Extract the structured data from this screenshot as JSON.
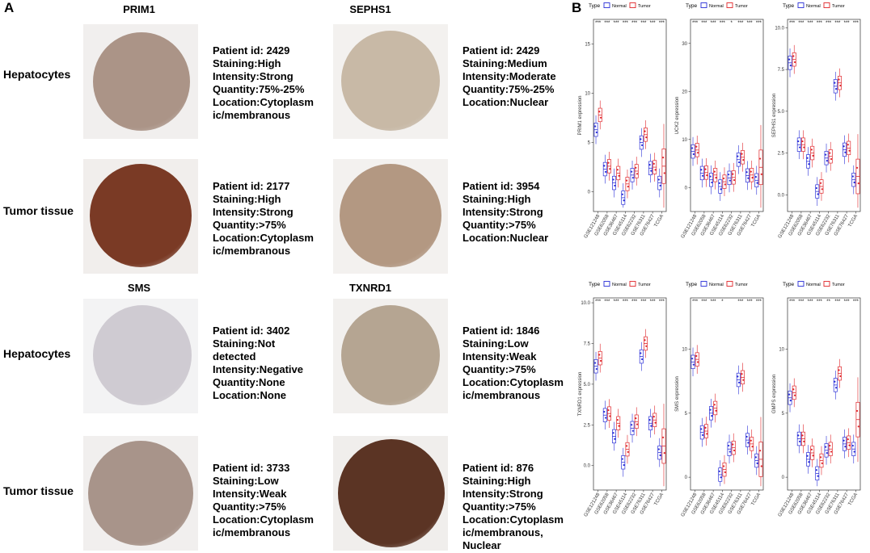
{
  "panel_a": {
    "letter": "A",
    "genes_row1": [
      "PRIM1",
      "SEPHS1"
    ],
    "genes_row2": [
      "SMS",
      "TXNRD1"
    ],
    "row_labels": [
      "Hepatocytes",
      "Tumor tissue",
      "Hepatocytes",
      "Tumor tissue"
    ],
    "cells": [
      {
        "lines": [
          "Patient id: 2429",
          "Staining:High",
          "Intensity:Strong",
          "Quantity:75%-25%",
          "Location:Cytoplasm",
          "ic/membranous"
        ],
        "stain": "#ab9487",
        "bg": "#f1efee"
      },
      {
        "lines": [
          "Patient id: 2429",
          "Staining:Medium",
          "Intensity:Moderate",
          "Quantity:75%-25%",
          "Location:Nuclear"
        ],
        "stain": "#c8b9a6",
        "bg": "#f3f1ef"
      },
      {
        "lines": [
          "Patient id: 2177",
          "Staining:High",
          "Intensity:Strong",
          "Quantity:>75%",
          "Location:Cytoplasm",
          "ic/membranous"
        ],
        "stain": "#7a3a25",
        "bg": "#f1eeec"
      },
      {
        "lines": [
          "Patient id: 3954",
          "Staining:High",
          "Intensity:Strong",
          "Quantity:>75%",
          "Location:Nuclear"
        ],
        "stain": "#b39882",
        "bg": "#f3f1ef"
      },
      {
        "lines": [
          "Patient id: 3402",
          "Staining:Not",
          "detected",
          "Intensity:Negative",
          "Quantity:None",
          "Location:None"
        ],
        "stain": "#cfcbd2",
        "bg": "#f3f3f4"
      },
      {
        "lines": [
          "Patient id: 1846",
          "Staining:Low",
          "Intensity:Weak",
          "Quantity:>75%",
          "Location:Cytoplasm",
          "ic/membranous"
        ],
        "stain": "#b5a592",
        "bg": "#f2f0ee"
      },
      {
        "lines": [
          "Patient id: 3733",
          "Staining:Low",
          "Intensity:Weak",
          "Quantity:>75%",
          "Location:Cytoplasm",
          "ic/membranous"
        ],
        "stain": "#a8948a",
        "bg": "#f1efee"
      },
      {
        "lines": [
          "Patient id: 876",
          "Staining:High",
          "Intensity:Strong",
          "Quantity:>75%",
          "Location:Cytoplasm",
          "ic/membranous,",
          "Nuclear"
        ],
        "stain": "#5b3424",
        "bg": "#f0eeec"
      }
    ]
  },
  "panel_b": {
    "letter": "B",
    "legend": {
      "title": "Type",
      "normal": "Normal",
      "tumor": "Tumor"
    },
    "colors": {
      "normal": "#2a2fd8",
      "tumor": "#e0262a"
    },
    "datasets": [
      "GSE121248",
      "GSE62058",
      "GSE36467",
      "GSE45114",
      "GSE62232",
      "GSE76311",
      "GSE76427",
      "TCGA"
    ]
  },
  "chart_data": [
    {
      "type": "box",
      "ylabel": "PRIM1 expression",
      "ylim": [
        -2,
        17.5
      ],
      "yticks": [
        0,
        5,
        10,
        15
      ],
      "categories": [
        "GSE121248",
        "GSE62058",
        "GSE36467",
        "GSE45114",
        "GSE62232",
        "GSE76311",
        "GSE76427",
        "TCGA"
      ],
      "significance": [
        "***",
        "***",
        "***",
        "***",
        "***",
        "***",
        "***",
        "***"
      ],
      "normal_medians": [
        6.3,
        2.3,
        0.9,
        -0.6,
        1.7,
        5.0,
        2.4,
        0.9
      ],
      "tumor_medians": [
        7.8,
        2.6,
        1.9,
        0.8,
        2.1,
        5.8,
        2.5,
        2.6
      ]
    },
    {
      "type": "box",
      "ylabel": "UCK2 expression",
      "ylim": [
        -5,
        35
      ],
      "yticks": [
        0,
        10,
        20,
        30
      ],
      "categories": [
        "GSE121248",
        "GSE62058",
        "GSE36467",
        "GSE45114",
        "GSE62232",
        "GSE76311",
        "GSE76427",
        "TCGA"
      ],
      "significance": [
        "***",
        "***",
        "***",
        "***",
        "*",
        "***",
        "***",
        "***"
      ],
      "normal_medians": [
        7.5,
        3.0,
        1.6,
        0.2,
        2.0,
        5.8,
        2.5,
        1.5
      ],
      "tumor_medians": [
        7.8,
        3.1,
        2.6,
        1.2,
        2.1,
        6.3,
        2.6,
        4.2
      ]
    },
    {
      "type": "box",
      "ylabel": "SEPHS1 expression",
      "ylim": [
        -1,
        10.5
      ],
      "yticks": [
        0.0,
        2.5,
        5.0,
        7.5,
        10.0
      ],
      "categories": [
        "GSE121248",
        "GSE62058",
        "GSE36467",
        "GSE45114",
        "GSE62232",
        "GSE76311",
        "GSE76427",
        "TCGA"
      ],
      "significance": [
        "***",
        "***",
        "***",
        "***",
        "***",
        "***",
        "***",
        "***"
      ],
      "normal_medians": [
        7.9,
        3.0,
        2.0,
        0.2,
        2.2,
        6.5,
        2.7,
        0.9
      ],
      "tumor_medians": [
        8.1,
        3.0,
        2.5,
        0.5,
        2.3,
        6.7,
        2.8,
        1.1
      ]
    },
    {
      "type": "box",
      "ylabel": "TXNRD1 expression",
      "ylim": [
        -1.5,
        10.3
      ],
      "yticks": [
        0.0,
        2.5,
        5.0,
        7.5,
        10.0
      ],
      "categories": [
        "GSE121248",
        "GSE62058",
        "GSE36467",
        "GSE45114",
        "GSE62232",
        "GSE76311",
        "GSE76427",
        "TCGA"
      ],
      "significance": [
        "***",
        "***",
        "***",
        "***",
        "***",
        "***",
        "***",
        "***"
      ],
      "normal_medians": [
        6.1,
        3.1,
        1.8,
        0.2,
        2.3,
        6.7,
        2.6,
        0.8
      ],
      "tumor_medians": [
        6.6,
        3.2,
        2.6,
        1.0,
        2.7,
        7.5,
        2.8,
        1.2
      ]
    },
    {
      "type": "box",
      "ylabel": "SMS expression",
      "ylim": [
        -1,
        14
      ],
      "yticks": [
        0,
        5,
        10
      ],
      "categories": [
        "GSE121248",
        "GSE62058",
        "GSE36467",
        "GSE45114",
        "GSE62232",
        "GSE76311",
        "GSE76427",
        "TCGA"
      ],
      "significance": [
        "***",
        "***",
        "***",
        "*",
        "",
        "***",
        "***",
        "***"
      ],
      "normal_medians": [
        9.0,
        3.5,
        5.0,
        0.2,
        2.2,
        7.6,
        2.9,
        1.3
      ],
      "tumor_medians": [
        9.2,
        3.6,
        5.4,
        0.6,
        2.3,
        7.8,
        2.6,
        1.4
      ]
    },
    {
      "type": "box",
      "ylabel": "GMPS expression",
      "ylim": [
        -1,
        14
      ],
      "yticks": [
        0,
        5,
        10
      ],
      "categories": [
        "GSE121248",
        "GSE62058",
        "GSE36467",
        "GSE45114",
        "GSE62232",
        "GSE76311",
        "GSE76427",
        "TCGA"
      ],
      "significance": [
        "***",
        "***",
        "***",
        "***",
        "**",
        "***",
        "***",
        "***"
      ],
      "normal_medians": [
        6.2,
        3.0,
        1.4,
        0.3,
        2.1,
        7.2,
        2.6,
        2.2
      ],
      "tumor_medians": [
        6.6,
        3.0,
        1.9,
        1.3,
        2.2,
        8.1,
        2.7,
        4.5
      ]
    }
  ]
}
